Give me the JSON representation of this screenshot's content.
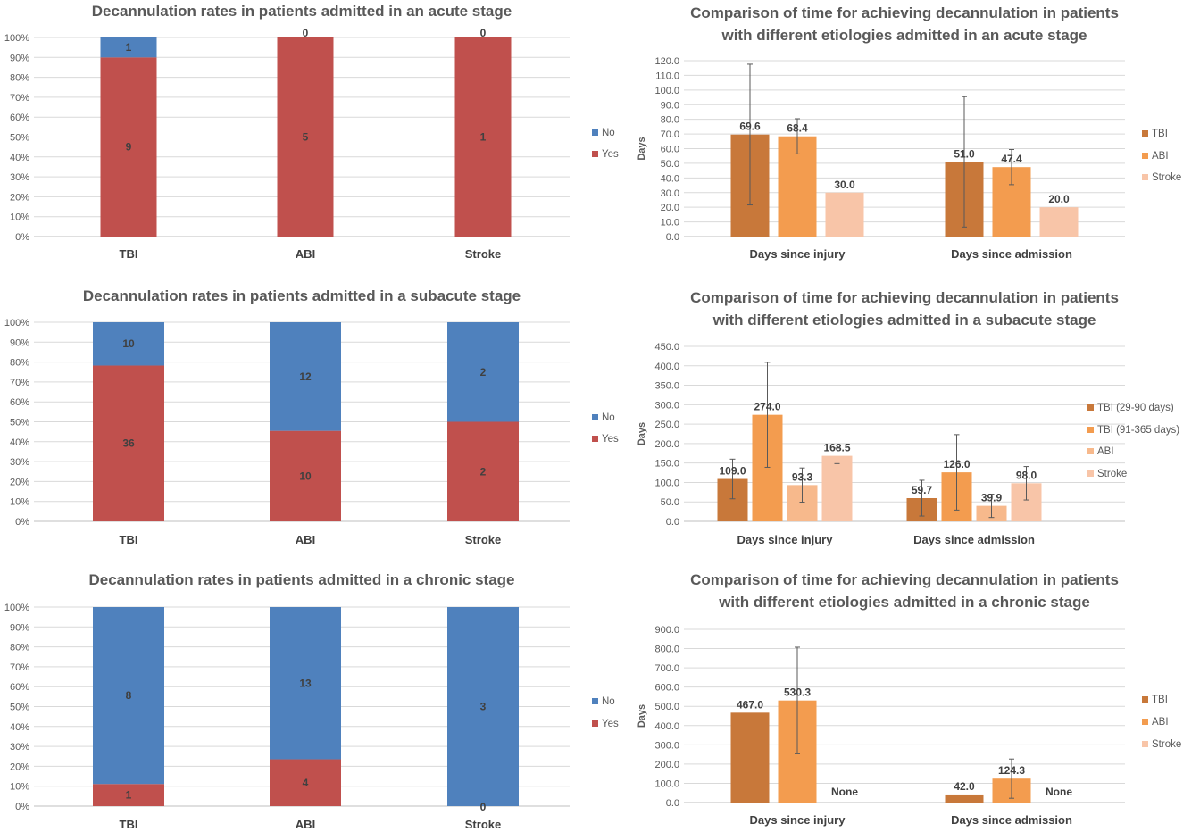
{
  "chart_data": [
    {
      "type": "bar",
      "stacked": "percent",
      "title": [
        "Decannulation rates in patients admitted in an acute stage"
      ],
      "categories": [
        "TBI",
        "ABI",
        "Stroke"
      ],
      "series": [
        {
          "name": "Yes",
          "values": [
            9,
            5,
            1
          ],
          "color": "#c0504d"
        },
        {
          "name": "No",
          "values": [
            1,
            0,
            0
          ],
          "color": "#4f81bd"
        }
      ],
      "ylim": [
        0,
        100
      ],
      "yticks": [
        "0%",
        "10%",
        "20%",
        "30%",
        "40%",
        "50%",
        "60%",
        "70%",
        "80%",
        "90%",
        "100%"
      ],
      "legend": [
        "No",
        "Yes"
      ],
      "legend_position": "right"
    },
    {
      "type": "bar",
      "title": [
        "Comparison of time for achieving decannulation in patients",
        "with different etiologies admitted in an acute stage"
      ],
      "categories": [
        "Days since injury",
        "Days since admission"
      ],
      "series": [
        {
          "name": "TBI",
          "values": [
            69.6,
            51.0
          ],
          "labels": [
            "69.6",
            "51.0"
          ],
          "errors": [
            48,
            44.5
          ],
          "color": "#c8783a"
        },
        {
          "name": "ABI",
          "values": [
            68.4,
            47.4
          ],
          "labels": [
            "68.4",
            "47.4"
          ],
          "errors": [
            12,
            12
          ],
          "color": "#f39c4f"
        },
        {
          "name": "Stroke",
          "values": [
            30.0,
            20.0
          ],
          "labels": [
            "30.0",
            "20.0"
          ],
          "errors": [
            null,
            null
          ],
          "color": "#f8c5a8"
        }
      ],
      "ylim": [
        0,
        120
      ],
      "yticks": [
        "0.0",
        "10.0",
        "20.0",
        "30.0",
        "40.0",
        "50.0",
        "60.0",
        "70.0",
        "80.0",
        "90.0",
        "100.0",
        "110.0",
        "120.0"
      ],
      "ylabel": "Days",
      "legend_position": "right"
    },
    {
      "type": "bar",
      "stacked": "percent",
      "title": [
        "Decannulation rates in patients admitted in a subacute stage"
      ],
      "categories": [
        "TBI",
        "ABI",
        "Stroke"
      ],
      "series": [
        {
          "name": "Yes",
          "values": [
            36,
            10,
            2
          ],
          "color": "#c0504d"
        },
        {
          "name": "No",
          "values": [
            10,
            12,
            2
          ],
          "color": "#4f81bd"
        }
      ],
      "ylim": [
        0,
        100
      ],
      "yticks": [
        "0%",
        "10%",
        "20%",
        "30%",
        "40%",
        "50%",
        "60%",
        "70%",
        "80%",
        "90%",
        "100%"
      ],
      "legend": [
        "No",
        "Yes"
      ],
      "legend_position": "right"
    },
    {
      "type": "bar",
      "title": [
        "Comparison of time for achieving decannulation in patients",
        "with different etiologies admitted in a subacute stage"
      ],
      "categories": [
        "Days since injury",
        "Days since admission"
      ],
      "series": [
        {
          "name": "TBI (29-90 days)",
          "values": [
            109.0,
            59.7
          ],
          "labels": [
            "109.0",
            "59.7"
          ],
          "errors": [
            51,
            46
          ],
          "color": "#c8783a"
        },
        {
          "name": "TBI (91-365 days)",
          "values": [
            274.0,
            126.0
          ],
          "labels": [
            "274.0",
            "126.0"
          ],
          "errors": [
            135,
            97
          ],
          "color": "#f39c4f"
        },
        {
          "name": "ABI",
          "values": [
            93.3,
            39.9
          ],
          "labels": [
            "93.3",
            "39.9"
          ],
          "errors": [
            44,
            30
          ],
          "color": "#f7b98c"
        },
        {
          "name": "Stroke",
          "values": [
            168.5,
            98.0
          ],
          "labels": [
            "168.5",
            "98.0"
          ],
          "errors": [
            20,
            43
          ],
          "color": "#f8c5a8"
        }
      ],
      "ylim": [
        0,
        450
      ],
      "yticks": [
        "0.0",
        "50.0",
        "100.0",
        "150.0",
        "200.0",
        "250.0",
        "300.0",
        "350.0",
        "400.0",
        "450.0"
      ],
      "ylabel": "Days",
      "legend_position": "right"
    },
    {
      "type": "bar",
      "stacked": "percent",
      "title": [
        "Decannulation rates in patients admitted in a chronic stage"
      ],
      "categories": [
        "TBI",
        "ABI",
        "Stroke"
      ],
      "series": [
        {
          "name": "Yes",
          "values": [
            1,
            4,
            0
          ],
          "color": "#c0504d"
        },
        {
          "name": "No",
          "values": [
            8,
            13,
            3
          ],
          "color": "#4f81bd"
        }
      ],
      "ylim": [
        0,
        100
      ],
      "yticks": [
        "0%",
        "10%",
        "20%",
        "30%",
        "40%",
        "50%",
        "60%",
        "70%",
        "80%",
        "90%",
        "100%"
      ],
      "legend": [
        "No",
        "Yes"
      ],
      "legend_position": "right"
    },
    {
      "type": "bar",
      "title": [
        "Comparison of time for achieving decannulation in patients",
        "with different etiologies admitted in a chronic stage"
      ],
      "categories": [
        "Days since injury",
        "Days since admission"
      ],
      "series": [
        {
          "name": "TBI",
          "values": [
            467.0,
            42.0
          ],
          "labels": [
            "467.0",
            "42.0"
          ],
          "errors": [
            null,
            null
          ],
          "color": "#c8783a"
        },
        {
          "name": "ABI",
          "values": [
            530.3,
            124.3
          ],
          "labels": [
            "530.3",
            "124.3"
          ],
          "errors": [
            277,
            102
          ],
          "color": "#f39c4f"
        },
        {
          "name": "Stroke",
          "values": [
            null,
            null
          ],
          "labels": [
            "None",
            "None"
          ],
          "errors": [
            null,
            null
          ],
          "color": "#f8c5a8"
        }
      ],
      "ylim": [
        0,
        900
      ],
      "yticks": [
        "0.0",
        "100.0",
        "200.0",
        "300.0",
        "400.0",
        "500.0",
        "600.0",
        "700.0",
        "800.0",
        "900.0"
      ],
      "ylabel": "Days",
      "legend_position": "right"
    }
  ]
}
